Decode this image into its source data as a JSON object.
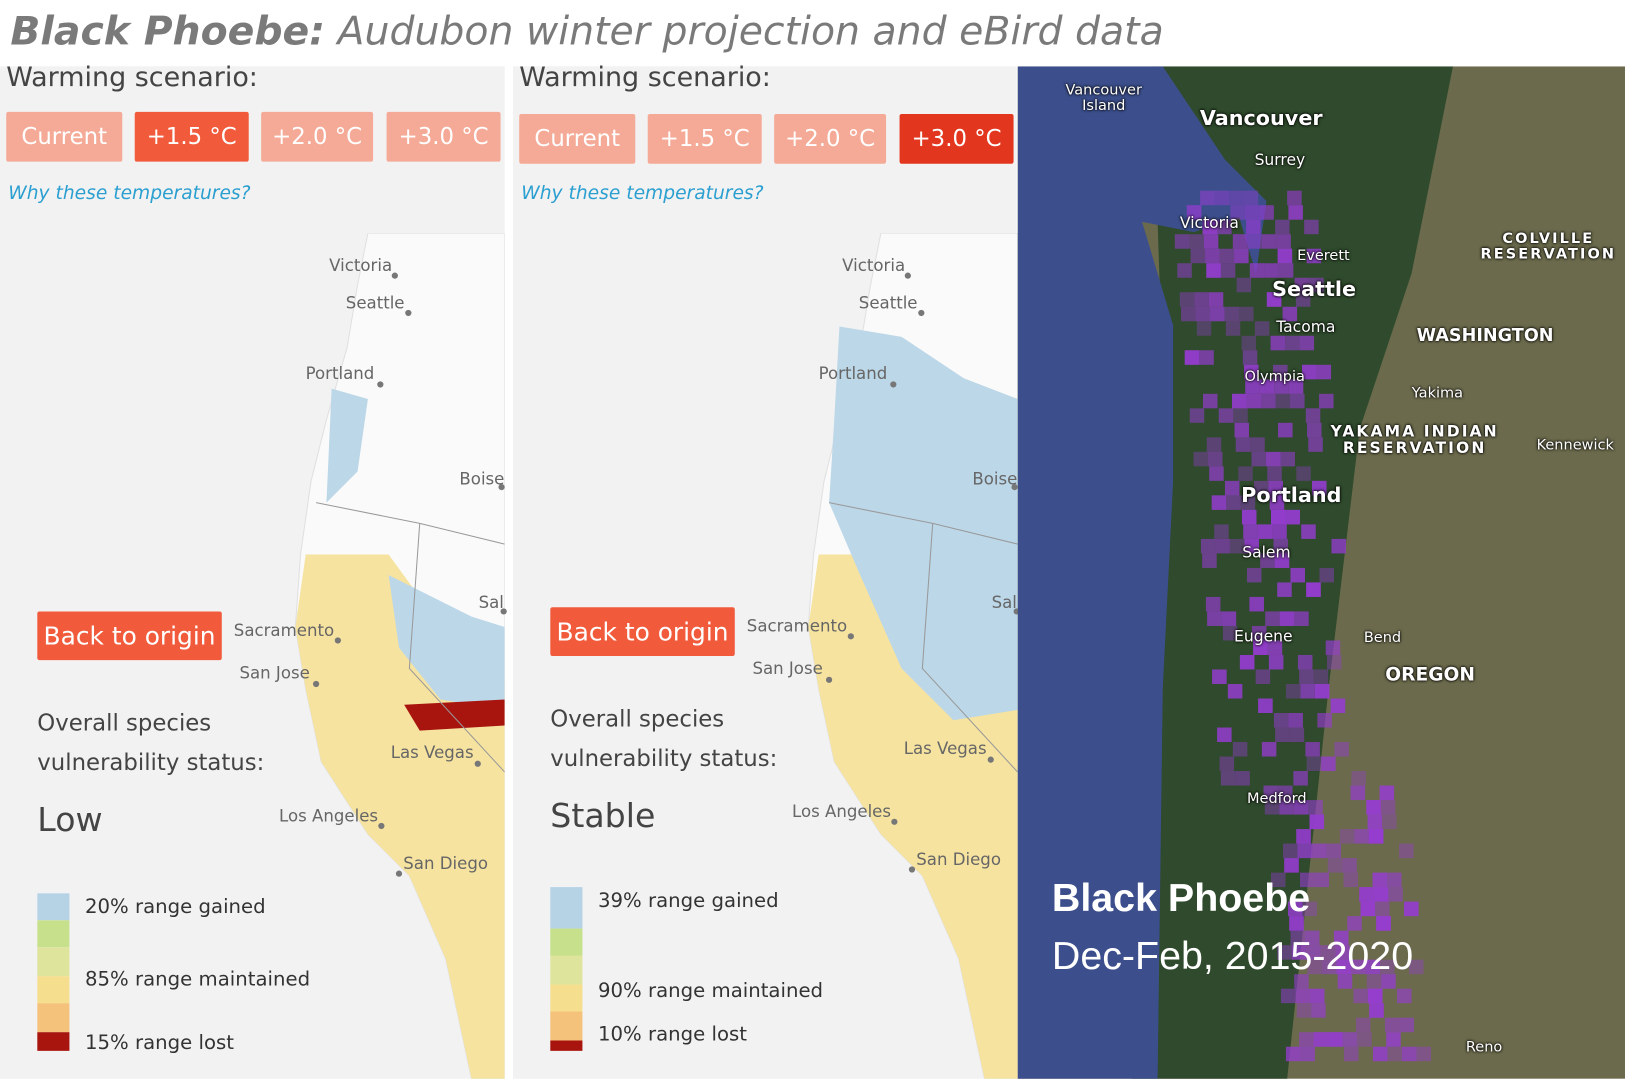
{
  "title": {
    "species": "Black Phoebe:",
    "subtitle": "Audubon winter projection and eBird data"
  },
  "panels": [
    {
      "heading": "Warming scenario:",
      "buttons": [
        "Current",
        "+1.5 °C",
        "+2.0 °C",
        "+3.0 °C"
      ],
      "active": 1,
      "link": "Why these temperatures?",
      "back": "Back to origin",
      "cities": [
        "Victoria",
        "Seattle",
        "Portland",
        "Boise",
        "Sal",
        "Sacramento",
        "San Jose",
        "Las Vegas",
        "Los Angeles",
        "San Diego"
      ],
      "status_label": [
        "Overall species",
        "vulnerability status:"
      ],
      "status": "Low",
      "legend": [
        "20% range gained",
        "85% range maintained",
        "15% range lost"
      ]
    },
    {
      "heading": "Warming scenario:",
      "buttons": [
        "Current",
        "+1.5 °C",
        "+2.0 °C",
        "+3.0 °C"
      ],
      "active": 3,
      "link": "Why these temperatures?",
      "back": "Back to origin",
      "cities": [
        "Victoria",
        "Seattle",
        "Portland",
        "Boise",
        "Sal",
        "Sacramento",
        "San Jose",
        "Las Vegas",
        "Los Angeles",
        "San Diego"
      ],
      "status_label": [
        "Overall species",
        "vulnerability status:"
      ],
      "status": "Stable",
      "legend": [
        "39% range gained",
        "90% range maintained",
        "10% range lost"
      ]
    }
  ],
  "ebird": {
    "labels": [
      "Vancouver Island",
      "Vancouver",
      "Surrey",
      "Victoria",
      "Everett",
      "Seattle",
      "Tacoma",
      "Olympia",
      "COLVILLE RESERVATION",
      "WASHINGTON",
      "Yakima",
      "YAKAMA INDIAN RESERVATION",
      "Kennewick",
      "Portland",
      "Salem",
      "Eugene",
      "Bend",
      "OREGON",
      "Medford",
      "Reno"
    ],
    "caption": {
      "title": "Black Phoebe",
      "subtitle": "Dec-Feb, 2015-2020"
    }
  }
}
